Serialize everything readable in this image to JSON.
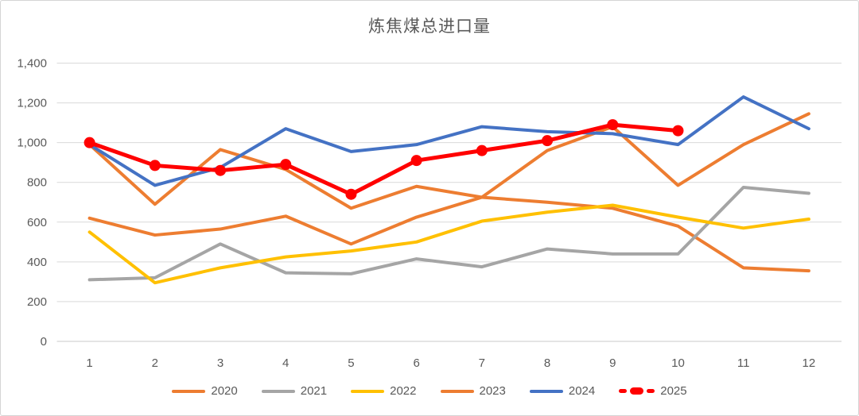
{
  "chart_data": {
    "type": "line",
    "title": "炼焦煤总进口量",
    "categories": [
      "1",
      "2",
      "3",
      "4",
      "5",
      "6",
      "7",
      "8",
      "9",
      "10",
      "11",
      "12"
    ],
    "xlabel": "",
    "ylabel": "",
    "y_axis": {
      "min": 0,
      "max": 1400,
      "step": 200,
      "tick_labels": [
        "0",
        "200",
        "400",
        "600",
        "800",
        "1,000",
        "1,200",
        "1,400"
      ]
    },
    "grid": true,
    "legend_position": "bottom",
    "series": [
      {
        "name": "2020",
        "color": "#ED7D31",
        "marker": false,
        "values": [
          990,
          690,
          965,
          865,
          670,
          780,
          725,
          700,
          670,
          580,
          370,
          355
        ]
      },
      {
        "name": "2021",
        "color": "#A5A5A5",
        "marker": false,
        "values": [
          310,
          320,
          490,
          345,
          340,
          415,
          375,
          465,
          440,
          440,
          775,
          745
        ]
      },
      {
        "name": "2022",
        "color": "#FFC000",
        "marker": false,
        "values": [
          550,
          295,
          370,
          425,
          455,
          500,
          605,
          650,
          685,
          625,
          570,
          615
        ]
      },
      {
        "name": "2023",
        "color": "#ED7D31",
        "marker": false,
        "values": [
          620,
          535,
          565,
          630,
          490,
          625,
          725,
          960,
          1080,
          785,
          990,
          1145
        ]
      },
      {
        "name": "2024",
        "color": "#4472C4",
        "marker": false,
        "values": [
          990,
          785,
          875,
          1070,
          955,
          990,
          1080,
          1055,
          1045,
          990,
          1230,
          1070
        ]
      },
      {
        "name": "2025",
        "color": "#FF0000",
        "marker": true,
        "values": [
          1000,
          885,
          860,
          890,
          740,
          910,
          960,
          1010,
          1090,
          1060
        ]
      }
    ]
  },
  "styles": {
    "text_color": "#595959",
    "gridline_color": "#D9D9D9",
    "zero_line_color": "#C9C9C9",
    "background": "#FFFFFF",
    "frame_border": "#D5D5D5"
  }
}
